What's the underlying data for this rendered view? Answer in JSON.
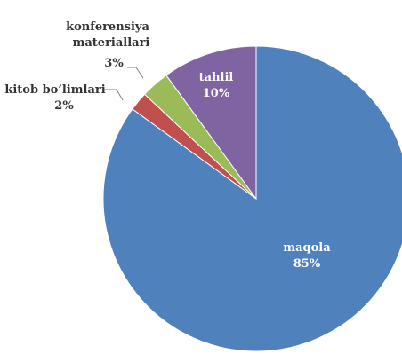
{
  "chart_data": {
    "type": "pie",
    "title": "",
    "start_angle_deg": 0,
    "direction": "clockwise",
    "slices": [
      {
        "label": "maqola",
        "value": 85,
        "value_label": "85%",
        "color": "#4f81bd"
      },
      {
        "label": "kitob bo‘limlari",
        "value": 2,
        "value_label": "2%",
        "color": "#c0504d"
      },
      {
        "label": "konferensiya materiallari",
        "value": 3,
        "value_label": "3%",
        "color": "#9bbb59"
      },
      {
        "label": "tahlil",
        "value": 10,
        "value_label": "10%",
        "color": "#8064a2"
      }
    ]
  },
  "labels": {
    "maqola_name": "maqola",
    "maqola_pct": "85%",
    "tahlil_name": "tahlil",
    "tahlil_pct": "10%",
    "konf_line1": "konferensiya",
    "konf_line2": "materiallari",
    "konf_pct": "3%",
    "kitob_name": "kitob bo‘limlari",
    "kitob_pct": "2%"
  }
}
